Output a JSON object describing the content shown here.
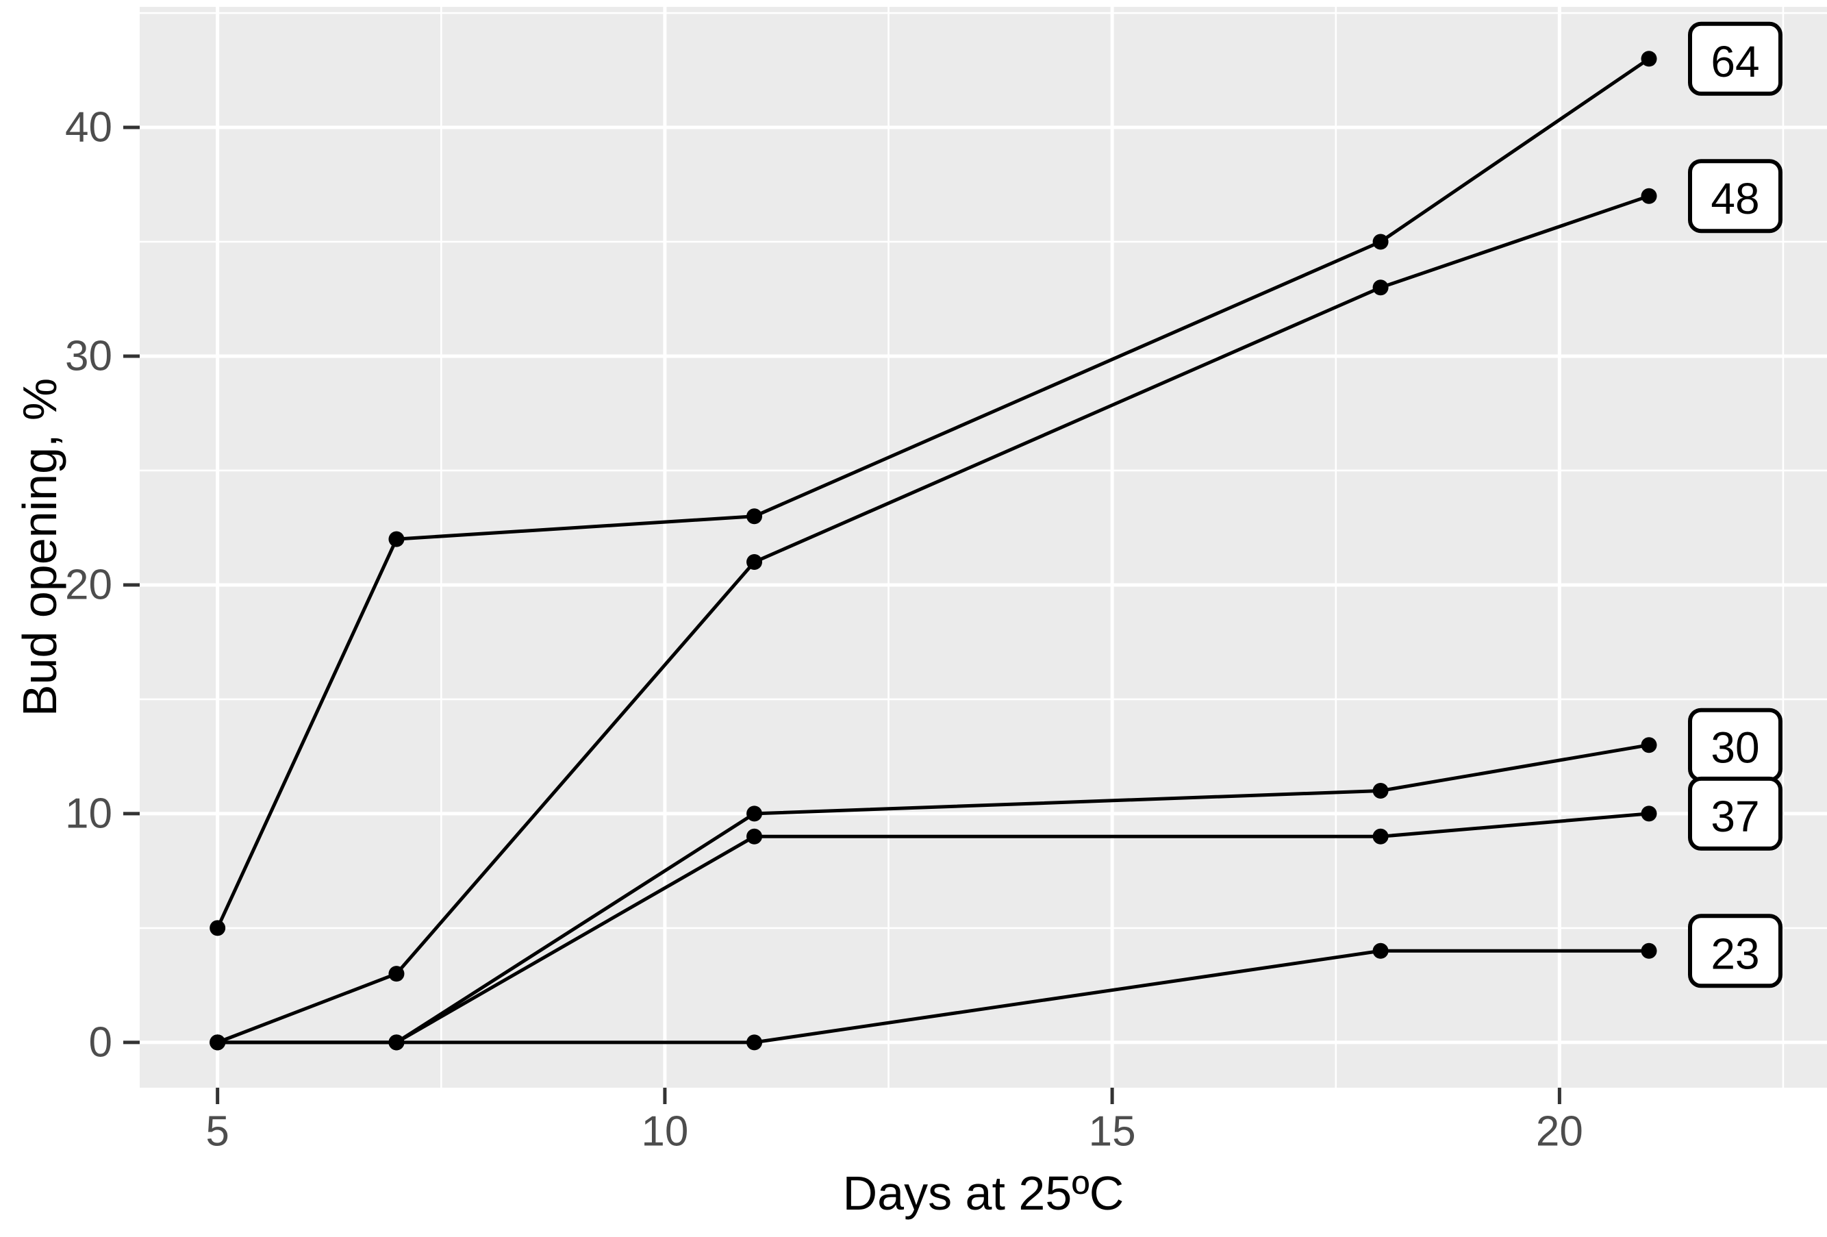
{
  "chart_data": {
    "type": "line",
    "title": "",
    "xlabel": "Days at 25ºC",
    "ylabel": "Bud opening, %",
    "x_axis": {
      "ticks": [
        5,
        10,
        15,
        20
      ],
      "minor_ticks": [
        7.5,
        12.5,
        17.5,
        22.5
      ],
      "range": [
        4.13,
        22.99
      ],
      "grid": true
    },
    "y_axis": {
      "ticks": [
        0,
        10,
        20,
        30,
        40
      ],
      "minor_ticks": [
        5,
        15,
        25,
        35,
        45
      ],
      "range": [
        -1.98,
        45.27
      ],
      "grid": true
    },
    "series": [
      {
        "label": "64",
        "points": [
          [
            5,
            5
          ],
          [
            7,
            22
          ],
          [
            11,
            23
          ],
          [
            18,
            35
          ],
          [
            21,
            43
          ]
        ]
      },
      {
        "label": "48",
        "points": [
          [
            5,
            0
          ],
          [
            7,
            3
          ],
          [
            11,
            21
          ],
          [
            18,
            33
          ],
          [
            21,
            37
          ]
        ]
      },
      {
        "label": "30",
        "points": [
          [
            5,
            0
          ],
          [
            7,
            0
          ],
          [
            11,
            10
          ],
          [
            18,
            11
          ],
          [
            21,
            13
          ]
        ]
      },
      {
        "label": "37",
        "points": [
          [
            5,
            0
          ],
          [
            7,
            0
          ],
          [
            11,
            9
          ],
          [
            18,
            9
          ],
          [
            21,
            10
          ]
        ]
      },
      {
        "label": "23",
        "points": [
          [
            5,
            0
          ],
          [
            7,
            0
          ],
          [
            11,
            0
          ],
          [
            18,
            4
          ],
          [
            21,
            4
          ]
        ]
      }
    ],
    "legend_position": "right-end-labels",
    "colors": {
      "panel_background": "#EBEBEB",
      "grid": "#FFFFFF",
      "line": "#000000",
      "point": "#000000",
      "tick_text": "#4D4D4D",
      "tick_mark": "#333333",
      "axis_title_text": "#000000",
      "label_fill": "#FFFFFF",
      "label_border": "#000000",
      "label_text": "#000000"
    }
  }
}
